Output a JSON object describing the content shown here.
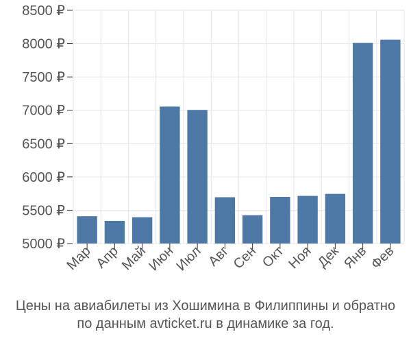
{
  "chart_data": {
    "type": "bar",
    "categories": [
      "Мар",
      "Апр",
      "Май",
      "Июн",
      "Июл",
      "Авг",
      "Сен",
      "Окт",
      "Ноя",
      "Дек",
      "Янв",
      "Фев"
    ],
    "values": [
      5410,
      5340,
      5395,
      7055,
      7005,
      5695,
      5425,
      5700,
      5715,
      5745,
      8010,
      8060
    ],
    "ylim": [
      5000,
      8500
    ],
    "yticks": [
      5000,
      5500,
      6000,
      6500,
      7000,
      7500,
      8000,
      8500
    ],
    "ytick_labels": [
      "5000 ₽",
      "5500 ₽",
      "6000 ₽",
      "6500 ₽",
      "7000 ₽",
      "7500 ₽",
      "8000 ₽",
      "8500 ₽"
    ],
    "grid": true,
    "bar_color": "#4e79a7",
    "caption_line1": "Цены на авиабилеты из Хошимина в Филиппины и обратно",
    "caption_line2": "по данным avticket.ru в динамике за год."
  }
}
